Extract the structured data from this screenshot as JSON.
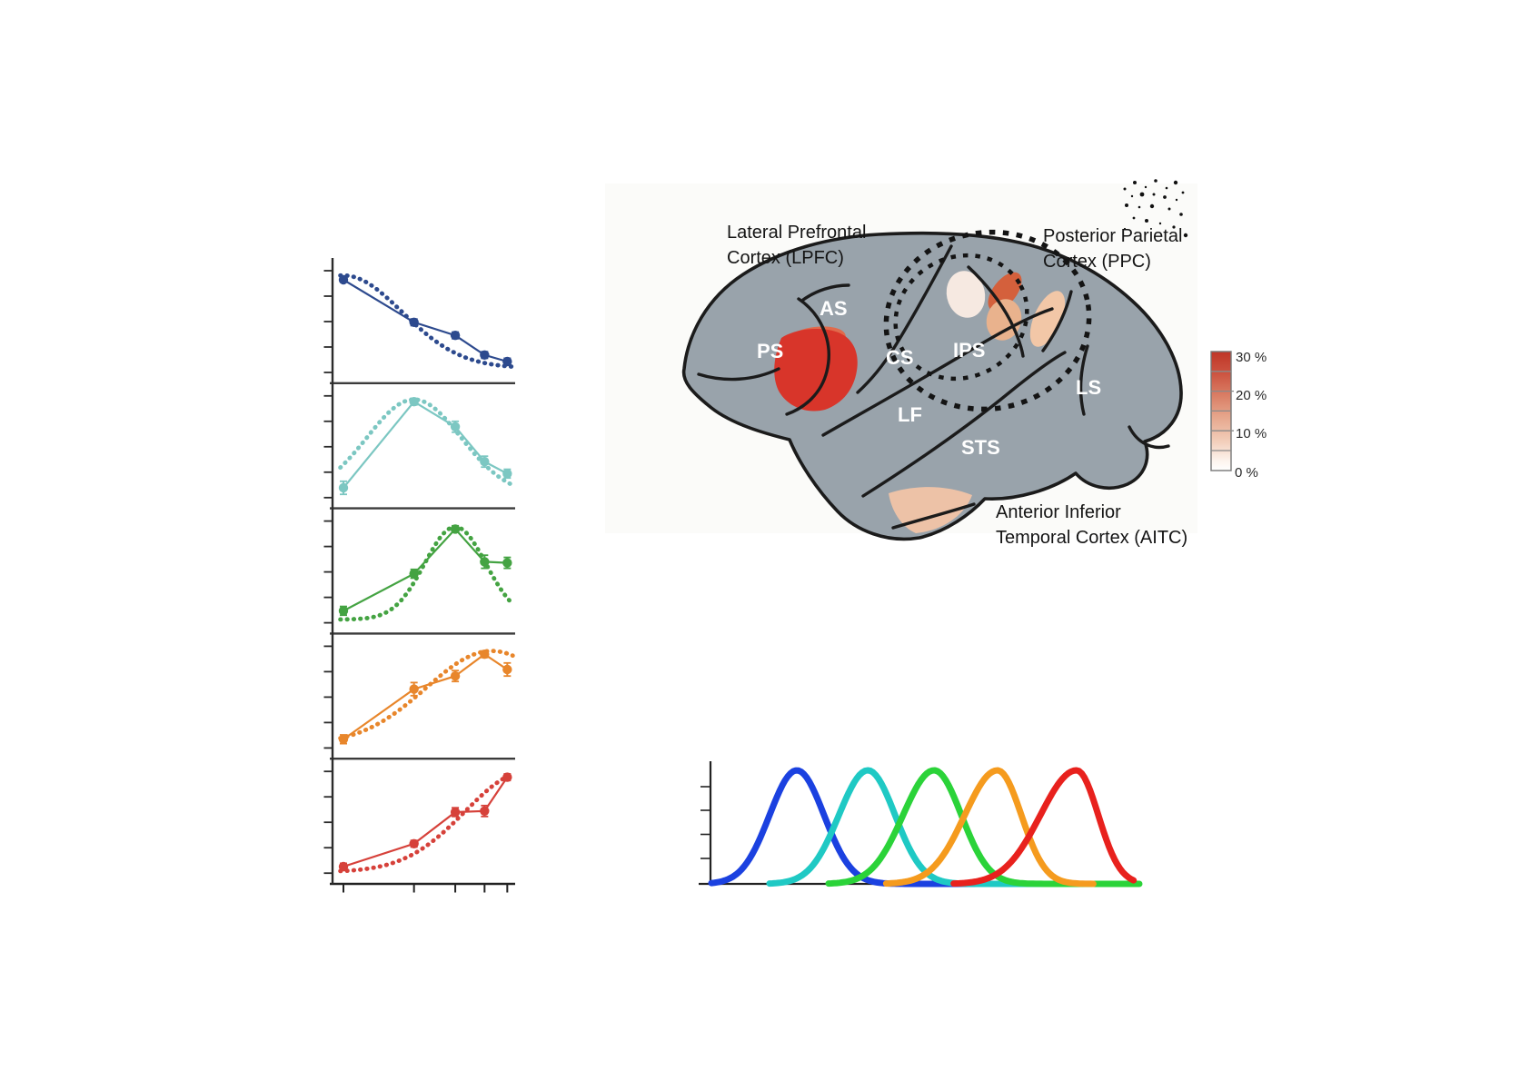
{
  "figure": {
    "description": "Numerosity tuning figure: five single-unit tuning-curve panels (preferred numerosities 1-5), a lateral macaque brain map with number-selective regions, and overlapping population tuning curves."
  },
  "brain_figure": {
    "background": "#fbfbf9",
    "region_labels": {
      "lpfc_line1": "Lateral Prefrontal",
      "lpfc_line2": "Cortex (LPFC)",
      "ppc_line1": "Posterior Parietal",
      "ppc_line2": "Cortex (PPC)",
      "aitc_line1": "Anterior Inferior",
      "aitc_line2": "Temporal Cortex (AITC)"
    },
    "sulcus_labels": {
      "as": "AS",
      "ps": "PS",
      "cs": "CS",
      "lf": "LF",
      "sts": "STS",
      "ips": "IPS",
      "ls": "LS"
    },
    "colorbar": {
      "labels": [
        "30 %",
        "20 %",
        "10 %",
        "0 %"
      ],
      "top_color": "#bf3527",
      "bottom_color": "#ffffff"
    },
    "colors": {
      "cortex_gray": "#99a3ab",
      "outline": "#1b1b1b",
      "activation_red": "#d8352a",
      "activation_red_light": "#e06a4c",
      "patch_pale": "#f6e9e1",
      "patch_orange": "#d4603c",
      "patch_peach": "#e9b28d",
      "patch_peach_light": "#f2c7a7",
      "patch_temporal": "#edc2a7"
    }
  },
  "chart_data": [
    {
      "type": "line",
      "id": "numerosity-tuning-panels",
      "title": "",
      "xlabel": "",
      "ylabel": "",
      "x_scale": "log",
      "x_values": [
        1,
        2,
        3,
        4,
        5
      ],
      "x_tick_values": [
        1,
        2,
        3,
        4,
        5
      ],
      "y_ticks_per_panel": 5,
      "grid": false,
      "axes_color": "#2b2b2b",
      "panels": [
        {
          "preferred_numerosity": 1,
          "color": "#2d4a8e",
          "measured": [
            0.89,
            0.5,
            0.38,
            0.2,
            0.14
          ],
          "errors": [
            0.02,
            0.03,
            0.03,
            0.03,
            0.03
          ],
          "fit": {
            "center_log10": 0.0,
            "sigma_log10": 0.25,
            "amplitude": 0.85,
            "baseline": 0.08
          }
        },
        {
          "preferred_numerosity": 2,
          "color": "#7cc7c2",
          "measured": [
            0.13,
            0.92,
            0.69,
            0.37,
            0.26
          ],
          "errors": [
            0.06,
            0.03,
            0.05,
            0.05,
            0.04
          ],
          "fit": {
            "center_log10": 0.301,
            "sigma_log10": 0.2,
            "amplitude": 0.88,
            "baseline": 0.06
          }
        },
        {
          "preferred_numerosity": 3,
          "color": "#44a342",
          "measured": [
            0.15,
            0.49,
            0.9,
            0.6,
            0.59
          ],
          "errors": [
            0.04,
            0.04,
            0.03,
            0.06,
            0.05
          ],
          "fit": {
            "center_log10": 0.477,
            "sigma_log10": 0.13,
            "amplitude": 0.85,
            "baseline": 0.07
          }
        },
        {
          "preferred_numerosity": 4,
          "color": "#e8862b",
          "measured": [
            0.12,
            0.58,
            0.7,
            0.9,
            0.76
          ],
          "errors": [
            0.04,
            0.06,
            0.05,
            0.03,
            0.06
          ],
          "fit": {
            "center_log10": 0.633,
            "sigma_log10": 0.28,
            "amplitude": 0.86,
            "baseline": 0.07
          }
        },
        {
          "preferred_numerosity": 5,
          "color": "#d6413a",
          "measured": [
            0.1,
            0.31,
            0.6,
            0.61,
            0.92
          ],
          "errors": [
            0.03,
            0.03,
            0.04,
            0.05,
            0.03
          ],
          "fit": {
            "center_log10": 0.78,
            "sigma_log10": 0.26,
            "amplitude": 0.92,
            "baseline": 0.05
          }
        }
      ]
    },
    {
      "type": "line",
      "id": "overlapping-population-tuning-curves",
      "title": "",
      "xlabel": "",
      "ylabel": "",
      "grid": false,
      "n_y_ticks": 4,
      "equal_peak_height": true,
      "axes_color": "#222222",
      "curves": [
        {
          "preferred_numerosity": 1,
          "color": "#1b41e0",
          "peak_frac": 0.203,
          "sigma_left_frac": 0.064,
          "sigma_right_frac": 0.064,
          "tail_end_frac": 0.765
        },
        {
          "preferred_numerosity": 2,
          "color": "#1fc9c4",
          "peak_frac": 0.37,
          "sigma_left_frac": 0.068,
          "sigma_right_frac": 0.064,
          "tail_end_frac": 0.872
        },
        {
          "preferred_numerosity": 3,
          "color": "#2bd339",
          "peak_frac": 0.526,
          "sigma_left_frac": 0.073,
          "sigma_right_frac": 0.064,
          "tail_end_frac": 1.012
        },
        {
          "preferred_numerosity": 4,
          "color": "#f59b1e",
          "peak_frac": 0.675,
          "sigma_left_frac": 0.077,
          "sigma_right_frac": 0.056,
          "tail_end_frac": 0.904
        },
        {
          "preferred_numerosity": 5,
          "color": "#e8211d",
          "peak_frac": 0.861,
          "sigma_left_frac": 0.085,
          "sigma_right_frac": 0.051,
          "tail_end_frac": 0.996
        }
      ]
    }
  ]
}
